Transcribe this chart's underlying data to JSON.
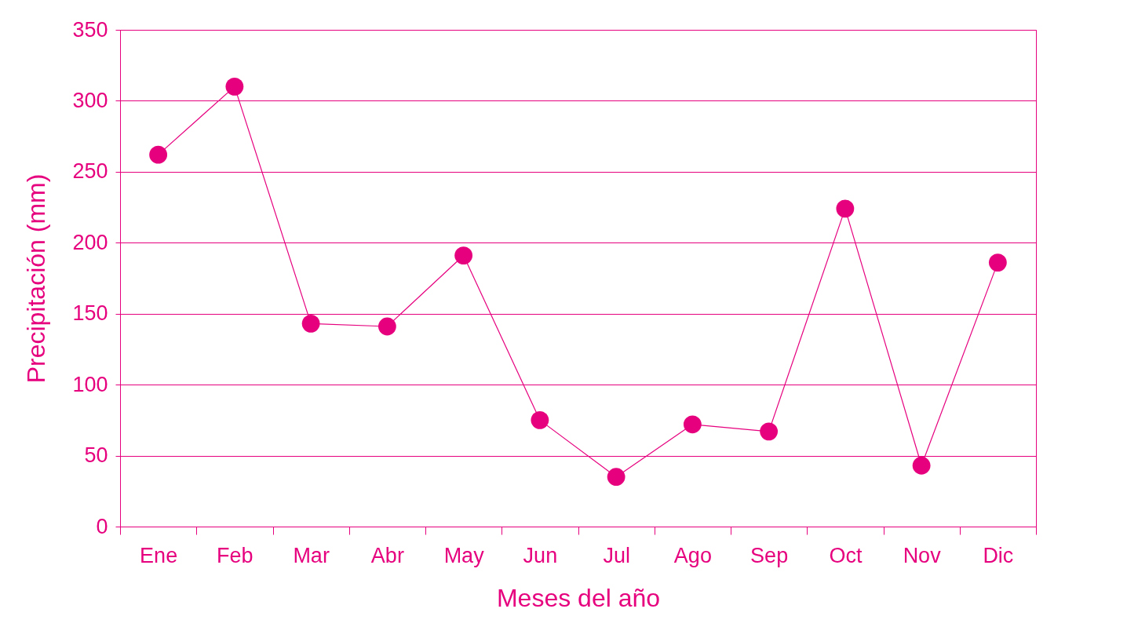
{
  "chart_data": {
    "type": "line",
    "xlabel": "Meses del año",
    "ylabel": "Precipitación (mm)",
    "categories": [
      "Ene",
      "Feb",
      "Mar",
      "Abr",
      "May",
      "Jun",
      "Jul",
      "Ago",
      "Sep",
      "Oct",
      "Nov",
      "Dic"
    ],
    "series": [
      {
        "color": "#e6007e",
        "values": [
          262,
          310,
          143,
          141,
          191,
          75,
          35,
          72,
          67,
          224,
          43,
          186
        ]
      }
    ],
    "ylim": [
      0,
      350
    ],
    "yticks": [
      0,
      50,
      100,
      150,
      200,
      250,
      300,
      350
    ],
    "grid": "y",
    "marker": "circle",
    "line_style": "solid",
    "legend": false
  }
}
